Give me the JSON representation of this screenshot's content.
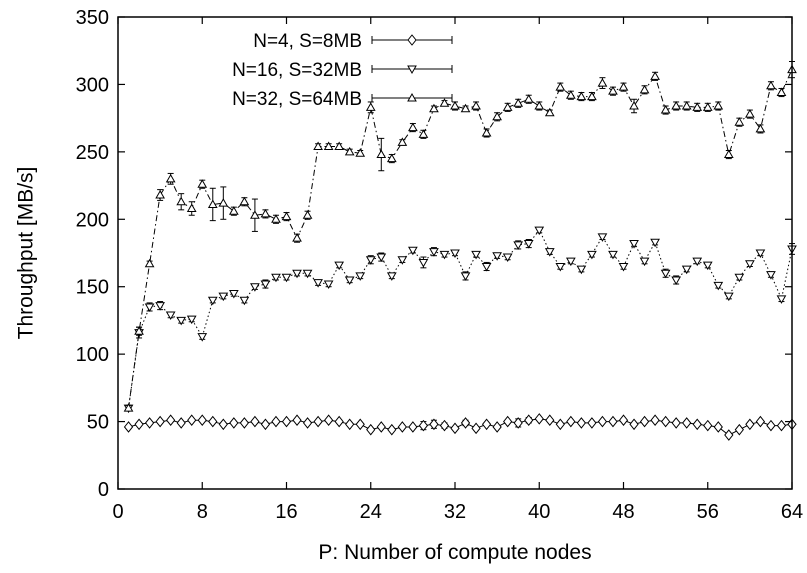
{
  "chart_data": {
    "type": "line",
    "xlabel": "P: Number of compute nodes",
    "ylabel": "Throughput [MB/s]",
    "xlim": [
      0,
      64
    ],
    "ylim": [
      0,
      350
    ],
    "xticks": [
      0,
      8,
      16,
      24,
      32,
      40,
      48,
      56,
      64
    ],
    "yticks": [
      0,
      50,
      100,
      150,
      200,
      250,
      300,
      350
    ],
    "grid": false,
    "legend_position": "top-center",
    "series": [
      {
        "name": "N=4, S=8MB",
        "marker": "diamond",
        "line_style": "solid",
        "x": [
          1,
          2,
          3,
          4,
          5,
          6,
          7,
          8,
          9,
          10,
          11,
          12,
          13,
          14,
          15,
          16,
          17,
          18,
          19,
          20,
          21,
          22,
          23,
          24,
          25,
          26,
          27,
          28,
          29,
          30,
          31,
          32,
          33,
          34,
          35,
          36,
          37,
          38,
          39,
          40,
          41,
          42,
          43,
          44,
          45,
          46,
          47,
          48,
          49,
          50,
          51,
          52,
          53,
          54,
          55,
          56,
          57,
          58,
          59,
          60,
          61,
          62,
          63,
          64
        ],
        "y": [
          46,
          48,
          49,
          50,
          51,
          49,
          51,
          51,
          50,
          48,
          49,
          49,
          50,
          48,
          50,
          50,
          51,
          49,
          50,
          51,
          50,
          48,
          48,
          44,
          46,
          44,
          46,
          46,
          47,
          48,
          47,
          45,
          49,
          45,
          48,
          46,
          50,
          49,
          51,
          52,
          51,
          48,
          50,
          49,
          49,
          50,
          50,
          51,
          48,
          50,
          51,
          50,
          49,
          49,
          48,
          47,
          46,
          40,
          44,
          48,
          50,
          47,
          47,
          48
        ],
        "err": [
          1,
          1,
          1,
          1,
          1,
          1,
          1,
          1,
          1,
          1,
          1,
          1,
          1,
          1,
          1,
          1,
          1,
          1,
          1,
          1,
          1,
          1,
          1,
          1,
          1,
          1,
          1,
          1,
          3,
          3,
          2,
          1,
          2,
          1,
          1,
          1,
          1,
          3,
          2,
          1,
          1,
          1,
          1,
          1,
          1,
          1,
          1,
          1,
          1,
          1,
          1,
          1,
          1,
          1,
          1,
          1,
          1,
          1,
          1,
          1,
          1,
          1,
          1,
          1
        ]
      },
      {
        "name": "N=16, S=32MB",
        "marker": "triangle-down",
        "line_style": "dotted",
        "x": [
          1,
          2,
          3,
          4,
          5,
          6,
          7,
          8,
          9,
          10,
          11,
          12,
          13,
          14,
          15,
          16,
          17,
          18,
          19,
          20,
          21,
          22,
          23,
          24,
          25,
          26,
          27,
          28,
          29,
          30,
          31,
          32,
          33,
          34,
          35,
          36,
          37,
          38,
          39,
          40,
          41,
          42,
          43,
          44,
          45,
          46,
          47,
          48,
          49,
          50,
          51,
          52,
          53,
          54,
          55,
          56,
          57,
          58,
          59,
          60,
          61,
          62,
          63,
          64
        ],
        "y": [
          60,
          116,
          135,
          136,
          129,
          125,
          126,
          113,
          140,
          143,
          145,
          140,
          150,
          152,
          157,
          157,
          160,
          160,
          153,
          152,
          166,
          155,
          158,
          170,
          172,
          158,
          170,
          177,
          168,
          176,
          174,
          175,
          158,
          174,
          165,
          173,
          172,
          181,
          182,
          192,
          176,
          165,
          169,
          163,
          174,
          187,
          174,
          165,
          182,
          169,
          183,
          160,
          155,
          163,
          169,
          166,
          151,
          143,
          157,
          167,
          175,
          159,
          141,
          178
        ],
        "err": [
          2,
          4,
          3,
          3,
          2,
          2,
          2,
          2,
          2,
          2,
          2,
          2,
          2,
          3,
          2,
          2,
          2,
          2,
          2,
          2,
          2,
          2,
          2,
          3,
          3,
          2,
          2,
          2,
          4,
          3,
          2,
          2,
          3,
          2,
          3,
          2,
          2,
          3,
          3,
          2,
          2,
          2,
          2,
          2,
          2,
          2,
          2,
          2,
          2,
          2,
          2,
          3,
          3,
          2,
          2,
          2,
          2,
          2,
          2,
          2,
          2,
          2,
          2,
          4
        ]
      },
      {
        "name": "N=32, S=64MB",
        "marker": "triangle-up",
        "line_style": "dash-dot",
        "x": [
          1,
          2,
          3,
          4,
          5,
          6,
          7,
          8,
          9,
          10,
          11,
          12,
          13,
          14,
          15,
          16,
          17,
          18,
          19,
          20,
          21,
          22,
          23,
          24,
          25,
          26,
          27,
          28,
          29,
          30,
          31,
          32,
          33,
          34,
          35,
          36,
          37,
          38,
          39,
          40,
          41,
          42,
          43,
          44,
          45,
          46,
          47,
          48,
          49,
          50,
          51,
          52,
          53,
          54,
          55,
          56,
          57,
          58,
          59,
          60,
          61,
          62,
          63,
          64
        ],
        "y": [
          60,
          117,
          167,
          218,
          230,
          213,
          208,
          226,
          211,
          212,
          206,
          213,
          203,
          204,
          200,
          202,
          186,
          203,
          254,
          254,
          254,
          250,
          249,
          283,
          248,
          245,
          257,
          268,
          263,
          282,
          286,
          284,
          282,
          284,
          264,
          276,
          283,
          286,
          289,
          284,
          279,
          298,
          292,
          291,
          291,
          301,
          295,
          298,
          284,
          296,
          306,
          281,
          284,
          284,
          283,
          283,
          284,
          248,
          272,
          278,
          267,
          299,
          294,
          311
        ],
        "err": [
          2,
          3,
          2,
          4,
          4,
          6,
          5,
          3,
          12,
          12,
          3,
          3,
          12,
          3,
          3,
          3,
          3,
          3,
          2,
          2,
          2,
          2,
          2,
          4,
          12,
          3,
          2,
          3,
          3,
          2,
          2,
          3,
          2,
          3,
          3,
          3,
          3,
          3,
          3,
          3,
          2,
          3,
          3,
          3,
          3,
          4,
          3,
          3,
          5,
          3,
          3,
          3,
          3,
          3,
          3,
          3,
          3,
          3,
          3,
          3,
          3,
          3,
          3,
          6
        ]
      }
    ]
  }
}
